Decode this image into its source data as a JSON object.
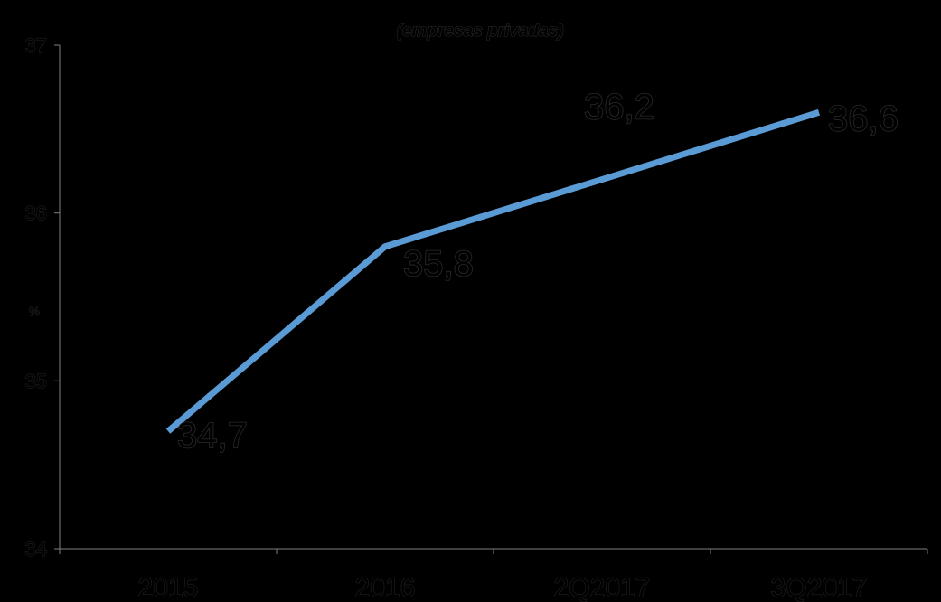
{
  "chart_data": {
    "type": "line",
    "title": "(empresas privadas)",
    "ylabel": "%",
    "xlabel": "",
    "categories": [
      "2015",
      "2016",
      "2Q2017",
      "3Q2017"
    ],
    "series": [
      {
        "values": [
          34.7,
          35.8,
          36.2,
          36.6
        ]
      }
    ],
    "data_labels": [
      "34,7",
      "35,8",
      "36,2",
      "36,6"
    ],
    "y_ticks": [
      "34",
      "35",
      "36",
      "37"
    ],
    "ylim": [
      34,
      37
    ],
    "grid": false,
    "legend": "none",
    "colors": {
      "line": "#5b9bd5",
      "axis": "#808080",
      "background": "#000000"
    }
  }
}
